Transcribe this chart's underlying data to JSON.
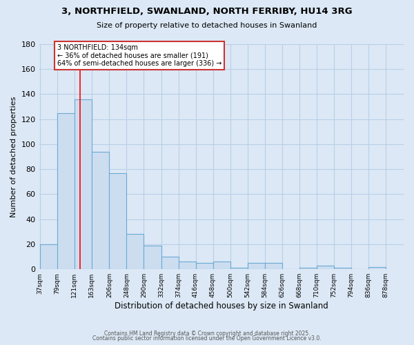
{
  "title": "3, NORTHFIELD, SWANLAND, NORTH FERRIBY, HU14 3RG",
  "subtitle": "Size of property relative to detached houses in Swanland",
  "xlabel": "Distribution of detached houses by size in Swanland",
  "ylabel": "Number of detached properties",
  "bar_color": "#ccddf0",
  "bar_edge_color": "#6aaad4",
  "background_color": "#dce8f5",
  "fig_background_color": "#dce8f5",
  "grid_color": "#b8cfe8",
  "annotation_text_line1": "3 NORTHFIELD: 134sqm",
  "annotation_text_line2": "← 36% of detached houses are smaller (191)",
  "annotation_text_line3": "64% of semi-detached houses are larger (336) →",
  "redline_x": 134,
  "bin_edges": [
    37,
    79,
    121,
    163,
    206,
    248,
    290,
    332,
    374,
    416,
    458,
    500,
    542,
    584,
    626,
    668,
    710,
    752,
    794,
    836,
    878
  ],
  "bin_values": [
    20,
    125,
    136,
    94,
    77,
    28,
    19,
    10,
    6,
    5,
    6,
    1,
    5,
    5,
    0,
    1,
    3,
    1,
    0,
    2
  ],
  "ylim": [
    0,
    180
  ],
  "yticks": [
    0,
    20,
    40,
    60,
    80,
    100,
    120,
    140,
    160,
    180
  ],
  "footer_line1": "Contains HM Land Registry data © Crown copyright and database right 2025.",
  "footer_line2": "Contains public sector information licensed under the Open Government Licence v3.0."
}
